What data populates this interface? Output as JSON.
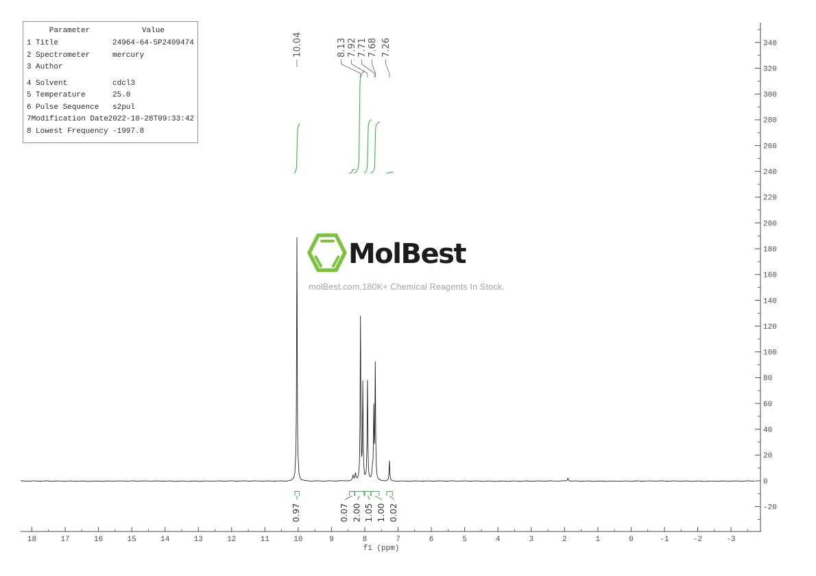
{
  "param_table": {
    "headers": [
      "Parameter",
      "Value"
    ],
    "rows": [
      {
        "num": "1",
        "name": "Title",
        "value": "24964-64-5P2409474"
      },
      {
        "num": "2",
        "name": "Spectrometer",
        "value": "mercury"
      },
      {
        "num": "3",
        "name": "Author",
        "value": ""
      },
      {
        "num": "4",
        "name": "Solvent",
        "value": "cdcl3"
      },
      {
        "num": "5",
        "name": "Temperature",
        "value": "25.0"
      },
      {
        "num": "6",
        "name": "Pulse Sequence",
        "value": "s2pul"
      },
      {
        "num": "7",
        "name": "Modification Date",
        "value": "2022-10-28T09:33:42"
      },
      {
        "num": "8",
        "name": "Lowest Frequency",
        "value": "-1997.8"
      }
    ]
  },
  "watermark": {
    "brand": "MolBest",
    "tagline": "molBest.com,180K+ Chemical Reagents In Stock.",
    "logo_green": "#7cc142",
    "brand_color": "#1c1c1c",
    "tagline_color": "#a3a3a3"
  },
  "chart_data": {
    "type": "line",
    "description": "1H NMR spectrum with integrals",
    "xlabel": "f1 (ppm)",
    "x_ticks": [
      18,
      17,
      16,
      15,
      14,
      13,
      12,
      11,
      10,
      9,
      8,
      7,
      6,
      5,
      4,
      3,
      2,
      1,
      0,
      -1,
      -2,
      -3
    ],
    "x_minor_step": 0.5,
    "x_range": [
      18.35,
      -3.7
    ],
    "y_ticks": [
      340,
      320,
      300,
      280,
      260,
      240,
      220,
      200,
      180,
      160,
      140,
      120,
      100,
      80,
      60,
      40,
      20,
      0,
      -20
    ],
    "y_minor_step": 10,
    "y_range": [
      -38,
      356
    ],
    "line_color": "#222222",
    "integral_color": "#3fae49",
    "axis_color": "#4a4a4a",
    "peaks": [
      {
        "ppm": 10.04,
        "height": 189
      },
      {
        "ppm": 8.13,
        "height": 126
      },
      {
        "ppm": 8.06,
        "height": 74
      },
      {
        "ppm": 7.92,
        "height": 77
      },
      {
        "ppm": 7.77,
        "height": 8
      },
      {
        "ppm": 7.73,
        "height": 53
      },
      {
        "ppm": 7.685,
        "height": 89
      },
      {
        "ppm": 7.26,
        "height": 15.5
      },
      {
        "ppm": 8.35,
        "height": 4
      },
      {
        "ppm": 8.28,
        "height": 5
      },
      {
        "ppm": 1.9,
        "height": 2.5
      }
    ],
    "peak_labels": [
      "10.04",
      "8.13",
      "7.92",
      "7.71",
      "7.68",
      "7.26"
    ],
    "peak_label_ppms": [
      10.04,
      8.13,
      7.92,
      7.71,
      7.68,
      7.26
    ],
    "integrals": [
      {
        "label": "0.97",
        "from_ppm": 10.1,
        "to_ppm": 9.97
      },
      {
        "label": "0.07",
        "from_ppm": 8.46,
        "to_ppm": 8.31
      },
      {
        "label": "2.00",
        "from_ppm": 8.3,
        "to_ppm": 8.02
      },
      {
        "label": "1.05",
        "from_ppm": 8.0,
        "to_ppm": 7.82
      },
      {
        "label": "1.00",
        "from_ppm": 7.81,
        "to_ppm": 7.57
      },
      {
        "label": "0.02",
        "from_ppm": 7.34,
        "to_ppm": 7.17
      }
    ]
  }
}
